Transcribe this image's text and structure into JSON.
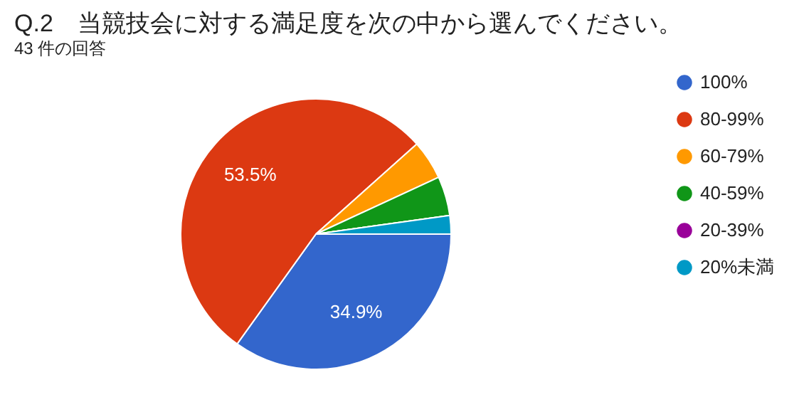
{
  "chart_data": {
    "type": "pie",
    "title": "Q.2　当競技会に対する満足度を次の中から選んでください。",
    "subtitle": "43 件の回答",
    "categories": [
      "100%",
      "80-99%",
      "60-79%",
      "40-59%",
      "20-39%",
      "20%未満"
    ],
    "values": [
      34.9,
      53.5,
      4.7,
      4.7,
      0,
      2.2
    ],
    "colors": [
      "#3366cc",
      "#dc3912",
      "#ff9900",
      "#109618",
      "#990099",
      "#0099c6"
    ],
    "value_labels": [
      "34.9%",
      "53.5%",
      null,
      null,
      null,
      null
    ],
    "legend": "right"
  }
}
